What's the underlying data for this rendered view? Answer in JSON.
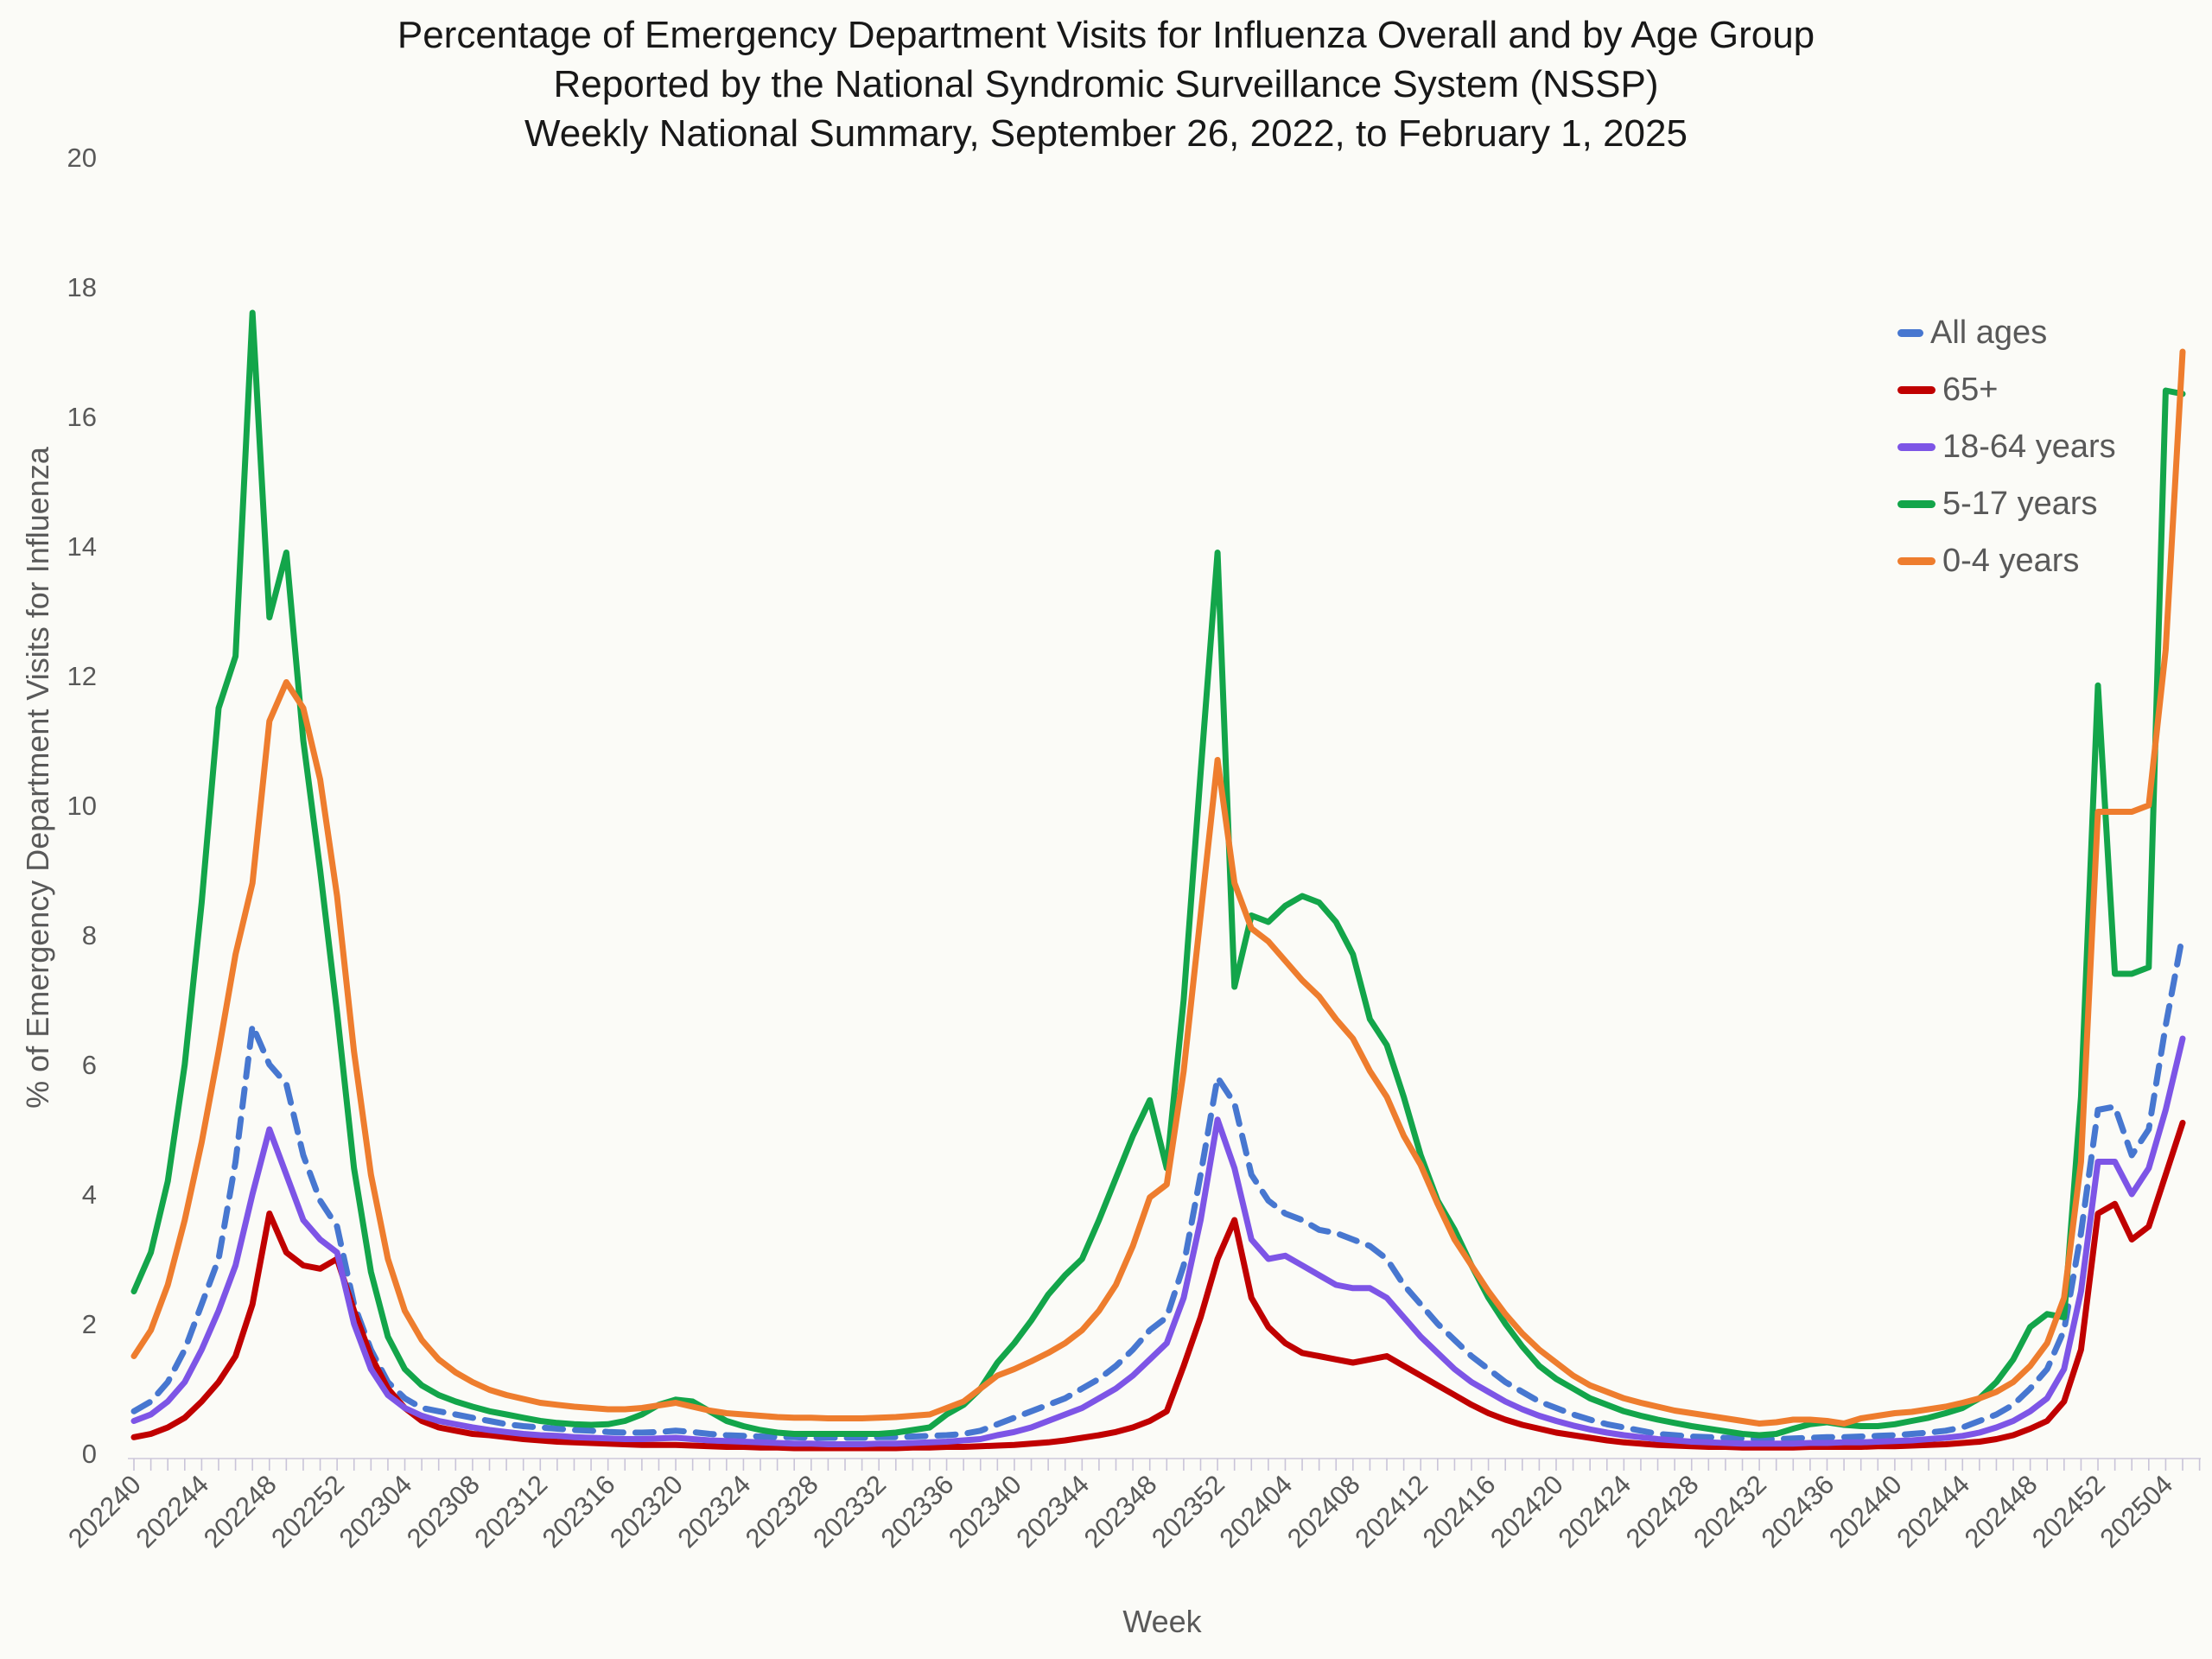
{
  "title": {
    "line1": "Percentage of Emergency Department Visits for Influenza Overall and by Age Group",
    "line2": "Reported by the National Syndromic Surveillance System (NSSP)",
    "line3": "Weekly National Summary, September 26, 2022, to February 1, 2025"
  },
  "x_axis": {
    "title": "Week",
    "tick_labels": [
      "202240",
      "202244",
      "202248",
      "202252",
      "202304",
      "202308",
      "202312",
      "202316",
      "202320",
      "202324",
      "202328",
      "202332",
      "202336",
      "202340",
      "202344",
      "202348",
      "202352",
      "202404",
      "202408",
      "202412",
      "202416",
      "202420",
      "202424",
      "202428",
      "202432",
      "202436",
      "202440",
      "202444",
      "202448",
      "202452",
      "202504"
    ]
  },
  "y_axis": {
    "title": "% of Emergency Department Visits for Influenza",
    "ticks": [
      0,
      2,
      4,
      6,
      8,
      10,
      12,
      14,
      16,
      18,
      20
    ],
    "range": [
      0,
      20
    ]
  },
  "colors": {
    "all_ages": "#4777D0",
    "age_65_plus": "#C00000",
    "age_18_64": "#7D55E6",
    "age_5_17": "#13A54A",
    "age_0_4": "#EE7D2E",
    "axis_text": "#595959",
    "tick_mark": "#C9C4D8"
  },
  "chart_data": {
    "type": "line",
    "title": "Percentage of Emergency Department Visits for Influenza Overall and by Age Group, Weekly National Summary, September 26, 2022, to February 1, 2025",
    "xlabel": "Week",
    "ylabel": "% of Emergency Department Visits for Influenza",
    "ylim": [
      0,
      20
    ],
    "grid": false,
    "legend_position": "upper right",
    "x": [
      "202240",
      "202241",
      "202242",
      "202243",
      "202244",
      "202245",
      "202246",
      "202247",
      "202248",
      "202249",
      "202250",
      "202251",
      "202252",
      "202301",
      "202302",
      "202303",
      "202304",
      "202305",
      "202306",
      "202307",
      "202308",
      "202309",
      "202310",
      "202311",
      "202312",
      "202313",
      "202314",
      "202315",
      "202316",
      "202317",
      "202318",
      "202319",
      "202320",
      "202321",
      "202322",
      "202323",
      "202324",
      "202325",
      "202326",
      "202327",
      "202328",
      "202329",
      "202330",
      "202331",
      "202332",
      "202333",
      "202334",
      "202335",
      "202336",
      "202337",
      "202338",
      "202339",
      "202340",
      "202341",
      "202342",
      "202343",
      "202344",
      "202345",
      "202346",
      "202347",
      "202348",
      "202349",
      "202350",
      "202351",
      "202352",
      "202401",
      "202402",
      "202403",
      "202404",
      "202405",
      "202406",
      "202407",
      "202408",
      "202409",
      "202410",
      "202411",
      "202412",
      "202413",
      "202414",
      "202415",
      "202416",
      "202417",
      "202418",
      "202419",
      "202420",
      "202421",
      "202422",
      "202423",
      "202424",
      "202425",
      "202426",
      "202427",
      "202428",
      "202429",
      "202430",
      "202431",
      "202432",
      "202433",
      "202434",
      "202435",
      "202436",
      "202437",
      "202438",
      "202439",
      "202440",
      "202441",
      "202442",
      "202443",
      "202444",
      "202445",
      "202446",
      "202447",
      "202448",
      "202449",
      "202450",
      "202451",
      "202452",
      "202501",
      "202502",
      "202503",
      "202504",
      "202505"
    ],
    "series": [
      {
        "name": "All ages",
        "color": "#4777D0",
        "style": "dashed",
        "values": [
          0.65,
          0.8,
          1.1,
          1.6,
          2.3,
          3.0,
          4.5,
          6.6,
          6.0,
          5.7,
          4.6,
          3.9,
          3.5,
          2.3,
          1.6,
          1.1,
          0.85,
          0.7,
          0.65,
          0.6,
          0.55,
          0.5,
          0.45,
          0.42,
          0.4,
          0.38,
          0.36,
          0.35,
          0.33,
          0.32,
          0.32,
          0.33,
          0.35,
          0.33,
          0.3,
          0.28,
          0.27,
          0.26,
          0.25,
          0.25,
          0.24,
          0.24,
          0.24,
          0.24,
          0.25,
          0.25,
          0.26,
          0.27,
          0.28,
          0.3,
          0.35,
          0.45,
          0.55,
          0.65,
          0.75,
          0.85,
          1.0,
          1.15,
          1.35,
          1.6,
          1.9,
          2.1,
          2.9,
          4.3,
          5.8,
          5.4,
          4.3,
          3.9,
          3.7,
          3.6,
          3.45,
          3.4,
          3.3,
          3.2,
          3.0,
          2.6,
          2.3,
          2.0,
          1.75,
          1.5,
          1.3,
          1.1,
          0.95,
          0.8,
          0.7,
          0.6,
          0.52,
          0.45,
          0.4,
          0.35,
          0.3,
          0.28,
          0.26,
          0.25,
          0.24,
          0.23,
          0.22,
          0.22,
          0.23,
          0.24,
          0.25,
          0.25,
          0.26,
          0.27,
          0.28,
          0.3,
          0.32,
          0.35,
          0.4,
          0.5,
          0.6,
          0.75,
          1.0,
          1.3,
          1.9,
          3.4,
          5.3,
          5.35,
          4.6,
          5.0,
          6.6,
          8.0
        ]
      },
      {
        "name": "65+",
        "color": "#C00000",
        "style": "solid",
        "values": [
          0.25,
          0.3,
          0.4,
          0.55,
          0.8,
          1.1,
          1.5,
          2.3,
          3.7,
          3.1,
          2.9,
          2.85,
          3.0,
          2.2,
          1.5,
          1.0,
          0.7,
          0.5,
          0.4,
          0.35,
          0.3,
          0.28,
          0.25,
          0.22,
          0.2,
          0.18,
          0.17,
          0.16,
          0.15,
          0.14,
          0.13,
          0.13,
          0.13,
          0.12,
          0.11,
          0.1,
          0.1,
          0.09,
          0.09,
          0.08,
          0.08,
          0.08,
          0.08,
          0.08,
          0.08,
          0.08,
          0.09,
          0.09,
          0.1,
          0.1,
          0.11,
          0.12,
          0.13,
          0.15,
          0.17,
          0.2,
          0.24,
          0.28,
          0.33,
          0.4,
          0.5,
          0.65,
          1.35,
          2.1,
          3.0,
          3.6,
          2.4,
          1.95,
          1.7,
          1.55,
          1.5,
          1.45,
          1.4,
          1.45,
          1.5,
          1.35,
          1.2,
          1.05,
          0.9,
          0.75,
          0.62,
          0.52,
          0.44,
          0.38,
          0.32,
          0.28,
          0.24,
          0.2,
          0.17,
          0.15,
          0.13,
          0.12,
          0.11,
          0.1,
          0.1,
          0.09,
          0.09,
          0.09,
          0.09,
          0.1,
          0.1,
          0.1,
          0.1,
          0.11,
          0.11,
          0.12,
          0.13,
          0.14,
          0.16,
          0.18,
          0.22,
          0.28,
          0.38,
          0.5,
          0.8,
          1.6,
          3.7,
          3.85,
          3.3,
          3.5,
          4.3,
          5.1
        ]
      },
      {
        "name": "18-64 years",
        "color": "#7D55E6",
        "style": "solid",
        "values": [
          0.5,
          0.6,
          0.8,
          1.1,
          1.6,
          2.2,
          2.9,
          4.0,
          5.0,
          4.3,
          3.6,
          3.3,
          3.1,
          2.0,
          1.3,
          0.9,
          0.7,
          0.58,
          0.5,
          0.45,
          0.4,
          0.36,
          0.33,
          0.3,
          0.28,
          0.27,
          0.25,
          0.24,
          0.23,
          0.22,
          0.22,
          0.23,
          0.24,
          0.22,
          0.2,
          0.19,
          0.18,
          0.17,
          0.16,
          0.15,
          0.15,
          0.14,
          0.14,
          0.14,
          0.15,
          0.15,
          0.16,
          0.17,
          0.18,
          0.2,
          0.22,
          0.28,
          0.33,
          0.4,
          0.5,
          0.6,
          0.7,
          0.85,
          1.0,
          1.2,
          1.45,
          1.7,
          2.4,
          3.6,
          5.15,
          4.4,
          3.3,
          3.0,
          3.05,
          2.9,
          2.75,
          2.6,
          2.55,
          2.55,
          2.4,
          2.1,
          1.8,
          1.55,
          1.3,
          1.1,
          0.95,
          0.8,
          0.68,
          0.58,
          0.5,
          0.43,
          0.37,
          0.32,
          0.28,
          0.25,
          0.22,
          0.2,
          0.18,
          0.17,
          0.16,
          0.15,
          0.15,
          0.15,
          0.15,
          0.16,
          0.16,
          0.17,
          0.17,
          0.18,
          0.19,
          0.2,
          0.22,
          0.24,
          0.27,
          0.32,
          0.4,
          0.5,
          0.65,
          0.85,
          1.3,
          2.5,
          4.5,
          4.5,
          4.0,
          4.4,
          5.3,
          6.4
        ]
      },
      {
        "name": "5-17 years",
        "color": "#13A54A",
        "style": "solid",
        "values": [
          2.5,
          3.1,
          4.2,
          6.0,
          8.5,
          11.5,
          12.3,
          17.6,
          12.9,
          13.9,
          11.0,
          9.0,
          6.8,
          4.4,
          2.8,
          1.8,
          1.3,
          1.05,
          0.9,
          0.8,
          0.72,
          0.65,
          0.6,
          0.55,
          0.5,
          0.47,
          0.45,
          0.44,
          0.45,
          0.5,
          0.6,
          0.75,
          0.83,
          0.8,
          0.65,
          0.5,
          0.42,
          0.36,
          0.32,
          0.3,
          0.3,
          0.3,
          0.3,
          0.3,
          0.3,
          0.32,
          0.36,
          0.4,
          0.6,
          0.75,
          1.0,
          1.4,
          1.7,
          2.05,
          2.45,
          2.75,
          3.0,
          3.6,
          4.25,
          4.9,
          5.45,
          4.4,
          7.0,
          10.5,
          13.9,
          7.2,
          8.3,
          8.2,
          8.45,
          8.6,
          8.5,
          8.2,
          7.7,
          6.7,
          6.3,
          5.5,
          4.6,
          3.9,
          3.45,
          2.9,
          2.4,
          2.0,
          1.65,
          1.35,
          1.15,
          1.0,
          0.85,
          0.75,
          0.65,
          0.58,
          0.52,
          0.47,
          0.42,
          0.38,
          0.34,
          0.3,
          0.28,
          0.3,
          0.38,
          0.45,
          0.48,
          0.44,
          0.42,
          0.42,
          0.45,
          0.5,
          0.55,
          0.62,
          0.7,
          0.85,
          1.1,
          1.45,
          1.95,
          2.15,
          2.1,
          5.5,
          11.85,
          7.4,
          7.4,
          7.5,
          16.4,
          16.35
        ]
      },
      {
        "name": "0-4 years",
        "color": "#EE7D2E",
        "style": "solid",
        "values": [
          1.5,
          1.9,
          2.6,
          3.6,
          4.8,
          6.2,
          7.7,
          8.8,
          11.3,
          11.9,
          11.5,
          10.4,
          8.6,
          6.2,
          4.3,
          3.0,
          2.2,
          1.75,
          1.45,
          1.25,
          1.1,
          0.98,
          0.9,
          0.84,
          0.78,
          0.75,
          0.72,
          0.7,
          0.68,
          0.68,
          0.7,
          0.74,
          0.78,
          0.72,
          0.66,
          0.62,
          0.6,
          0.58,
          0.56,
          0.55,
          0.55,
          0.54,
          0.54,
          0.54,
          0.55,
          0.56,
          0.58,
          0.6,
          0.7,
          0.8,
          1.0,
          1.2,
          1.3,
          1.42,
          1.55,
          1.7,
          1.9,
          2.2,
          2.6,
          3.2,
          3.95,
          4.15,
          5.9,
          8.3,
          10.7,
          8.8,
          8.1,
          7.9,
          7.6,
          7.3,
          7.05,
          6.7,
          6.4,
          5.9,
          5.5,
          4.9,
          4.45,
          3.85,
          3.3,
          2.9,
          2.5,
          2.15,
          1.85,
          1.6,
          1.4,
          1.2,
          1.05,
          0.95,
          0.85,
          0.78,
          0.72,
          0.66,
          0.62,
          0.58,
          0.54,
          0.5,
          0.46,
          0.48,
          0.52,
          0.52,
          0.5,
          0.46,
          0.54,
          0.58,
          0.62,
          0.64,
          0.68,
          0.72,
          0.78,
          0.85,
          0.95,
          1.1,
          1.35,
          1.7,
          2.4,
          4.5,
          9.9,
          9.9,
          9.9,
          10.0,
          12.4,
          17.0
        ]
      }
    ]
  }
}
